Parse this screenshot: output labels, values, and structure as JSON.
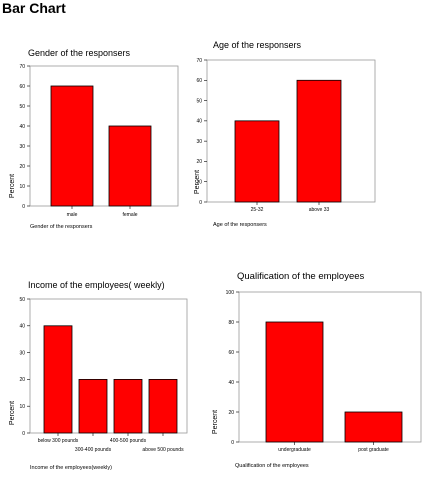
{
  "page": {
    "title": "Bar Chart"
  },
  "colors": {
    "bar": "#ff0000",
    "frame": "#9a9a9a",
    "axis": "#000000"
  },
  "chart_data": [
    {
      "type": "bar",
      "title": "Gender of the responsers",
      "xlabel": "Gender of the responsers",
      "ylabel": "Percent",
      "categories": [
        "male",
        "female"
      ],
      "values": [
        60,
        40
      ],
      "ylim": [
        0,
        70
      ],
      "yticks": [
        0,
        10,
        20,
        30,
        40,
        50,
        60,
        70
      ]
    },
    {
      "type": "bar",
      "title": "Age of the responsers",
      "xlabel": "Age of the responsers",
      "ylabel": "Percent",
      "categories": [
        "25-32",
        "above 33"
      ],
      "values": [
        40,
        60
      ],
      "ylim": [
        0,
        70
      ],
      "yticks": [
        0,
        10,
        20,
        30,
        40,
        50,
        60,
        70
      ]
    },
    {
      "type": "bar",
      "title": "Income of the employees( weekly)",
      "xlabel": "Income of the employees(weekly)",
      "ylabel": "Percent",
      "categories": [
        "below 300 pounds",
        "300-400 pounds",
        "400-500 pounds",
        "above 500 pounds"
      ],
      "values": [
        40,
        20,
        20,
        20
      ],
      "ylim": [
        0,
        50
      ],
      "yticks": [
        0,
        10,
        20,
        30,
        40,
        50
      ]
    },
    {
      "type": "bar",
      "title": "Qualification of the employees",
      "xlabel": "Qualification of the employees",
      "ylabel": "Percent",
      "categories": [
        "undergraduate",
        "post graduate"
      ],
      "values": [
        80,
        20
      ],
      "ylim": [
        0,
        100
      ],
      "yticks": [
        0,
        20,
        40,
        60,
        80,
        100
      ]
    }
  ]
}
